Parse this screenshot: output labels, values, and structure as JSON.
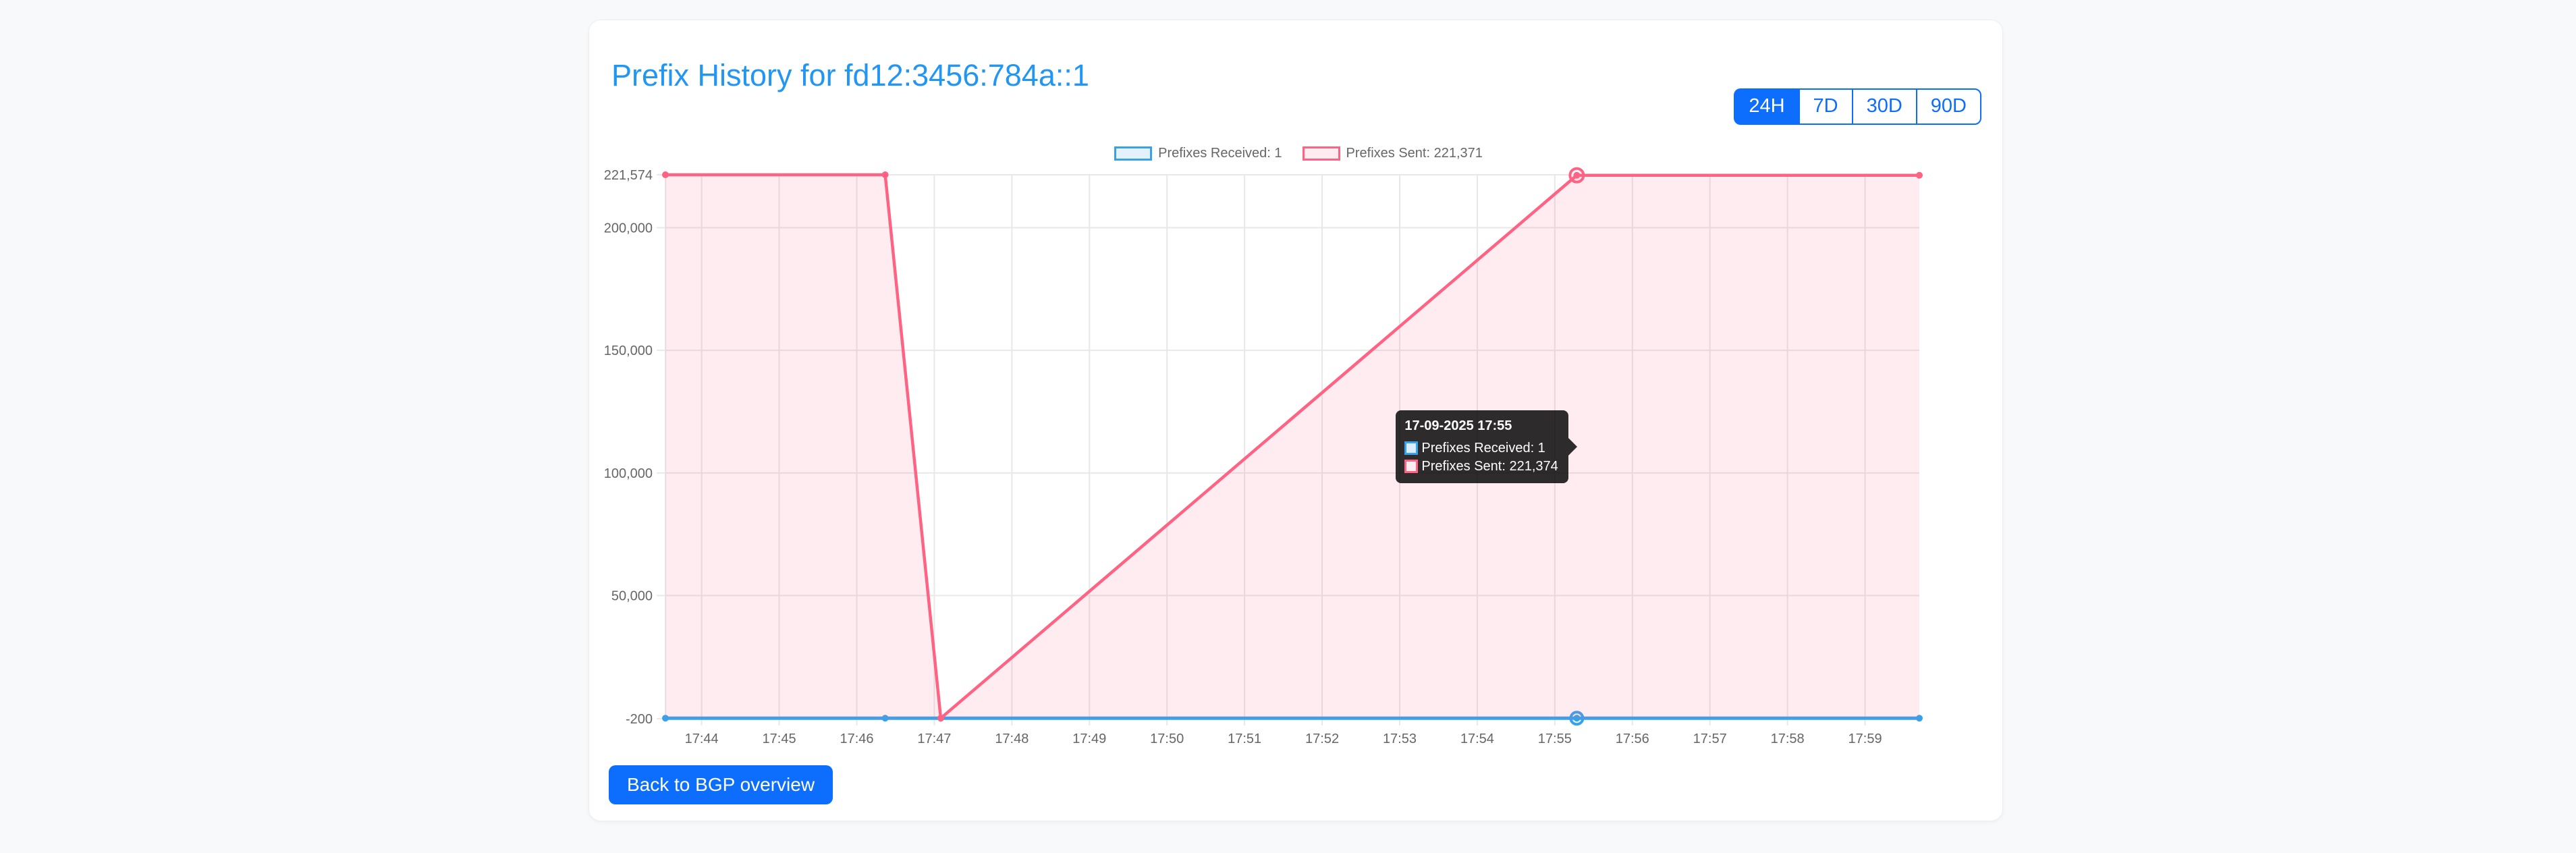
{
  "page_background": "#f8f9fa",
  "header": {
    "title": "Prefix History for fd12:3456:784a::1",
    "title_color": "#2196f3"
  },
  "range_selector": {
    "accent_color": "#0d6efd",
    "options": [
      {
        "label": "24H",
        "active": true
      },
      {
        "label": "7D",
        "active": false
      },
      {
        "label": "30D",
        "active": false
      },
      {
        "label": "90D",
        "active": false
      }
    ]
  },
  "chart_data": {
    "type": "area",
    "title": "",
    "xlabel": "",
    "ylabel": "",
    "legend_position": "top",
    "grid": true,
    "grid_color": "#e8e8e8",
    "tick_color": "#666666",
    "y_min": -200,
    "y_max": 221574,
    "y_ticks": [
      {
        "label": "221,574",
        "value": 221574
      },
      {
        "label": "200,000",
        "value": 200000
      },
      {
        "label": "150,000",
        "value": 150000
      },
      {
        "label": "100,000",
        "value": 100000
      },
      {
        "label": "50,000",
        "value": 50000
      },
      {
        "label": "-200",
        "value": -200
      }
    ],
    "x_point_times": [
      "17:43:32",
      "17:46:22",
      "17:47:05",
      "17:55:17",
      "17:59:42"
    ],
    "x_point_seconds": [
      0,
      170,
      213,
      705,
      970
    ],
    "x_tick_labels": [
      "17:44",
      "17:45",
      "17:46",
      "17:47",
      "17:48",
      "17:49",
      "17:50",
      "17:51",
      "17:52",
      "17:53",
      "17:54",
      "17:55",
      "17:56",
      "17:57",
      "17:58",
      "17:59"
    ],
    "x_tick_seconds": [
      28,
      88,
      148,
      208,
      268,
      328,
      388,
      448,
      508,
      568,
      628,
      688,
      748,
      808,
      868,
      928
    ],
    "series": [
      {
        "name": "Prefixes Received: 1",
        "line_color": "#36a2eb",
        "fill_color": "rgba(54,162,235,0.12)",
        "legend_box_fill": "#e3f1fc",
        "line_width": 5,
        "values": [
          1,
          1,
          1,
          1,
          1
        ]
      },
      {
        "name": "Prefixes Sent: 221,371",
        "line_color": "#ff6384",
        "fill_color": "rgba(255,99,132,0.12)",
        "legend_box_fill": "#ffecf1",
        "line_width": 4.5,
        "values": [
          221574,
          221574,
          3,
          221374,
          221371
        ]
      }
    ],
    "hover_index": 3
  },
  "tooltip": {
    "title": "17-09-2025 17:55",
    "background": "rgba(0,0,0,0.82)",
    "rows": [
      {
        "text": "Prefixes Received: 1",
        "box_border": "#36a2eb",
        "box_fill": "#dceefb"
      },
      {
        "text": "Prefixes Sent: 221,374",
        "box_border": "#ff6384",
        "box_fill": "#fdebf0"
      }
    ]
  },
  "footer": {
    "back_button": "Back to BGP overview"
  }
}
